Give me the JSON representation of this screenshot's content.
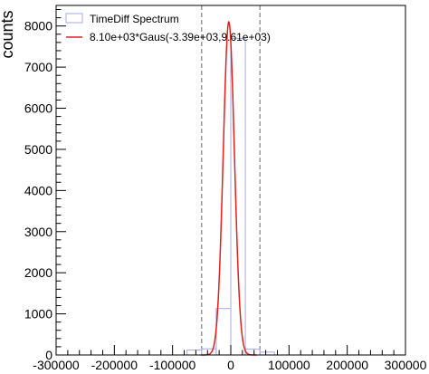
{
  "chart_data": {
    "type": "histogram",
    "title": "",
    "xlabel": "",
    "ylabel": "counts",
    "xlim": [
      -300000,
      300000
    ],
    "ylim": [
      0,
      8500
    ],
    "x_ticks": [
      -300000,
      -200000,
      -100000,
      0,
      100000,
      200000,
      300000
    ],
    "x_tick_labels": [
      "-300000",
      "-200000",
      "-100000",
      "0",
      "100000",
      "200000",
      "300000"
    ],
    "y_ticks": [
      0,
      1000,
      2000,
      3000,
      4000,
      5000,
      6000,
      7000,
      8000
    ],
    "y_tick_labels": [
      "0",
      "1000",
      "2000",
      "3000",
      "4000",
      "5000",
      "6000",
      "7000",
      "8000"
    ],
    "grid": false,
    "legend_position": "top-left",
    "series": [
      {
        "name": "TimeDiff Spectrum",
        "kind": "histogram",
        "color": "#a8a8e0",
        "bins": [
          {
            "x0": -75000,
            "x1": -50000,
            "y": 120
          },
          {
            "x0": -50000,
            "x1": -25000,
            "y": 150
          },
          {
            "x0": -25000,
            "x1": 0,
            "y": 1130
          },
          {
            "x0": 0,
            "x1": 25000,
            "y": 7700
          },
          {
            "x0": 25000,
            "x1": 50000,
            "y": 140
          },
          {
            "x0": 50000,
            "x1": 75000,
            "y": 70
          }
        ]
      },
      {
        "name": "8.10e+03*Gaus(-3.39e+03,9.61e+03)",
        "kind": "gaussian",
        "color": "#e02020",
        "amplitude": 8100,
        "mean": -3390,
        "sigma": 9610
      }
    ],
    "reference_lines": [
      {
        "x": -50000,
        "style": "dashed",
        "color": "#666666"
      },
      {
        "x": 50000,
        "style": "dashed",
        "color": "#666666"
      }
    ],
    "colors": {
      "axis": "#000000",
      "histogram": "#a8a8e0",
      "fit": "#e02020",
      "dashed": "#666666"
    }
  }
}
